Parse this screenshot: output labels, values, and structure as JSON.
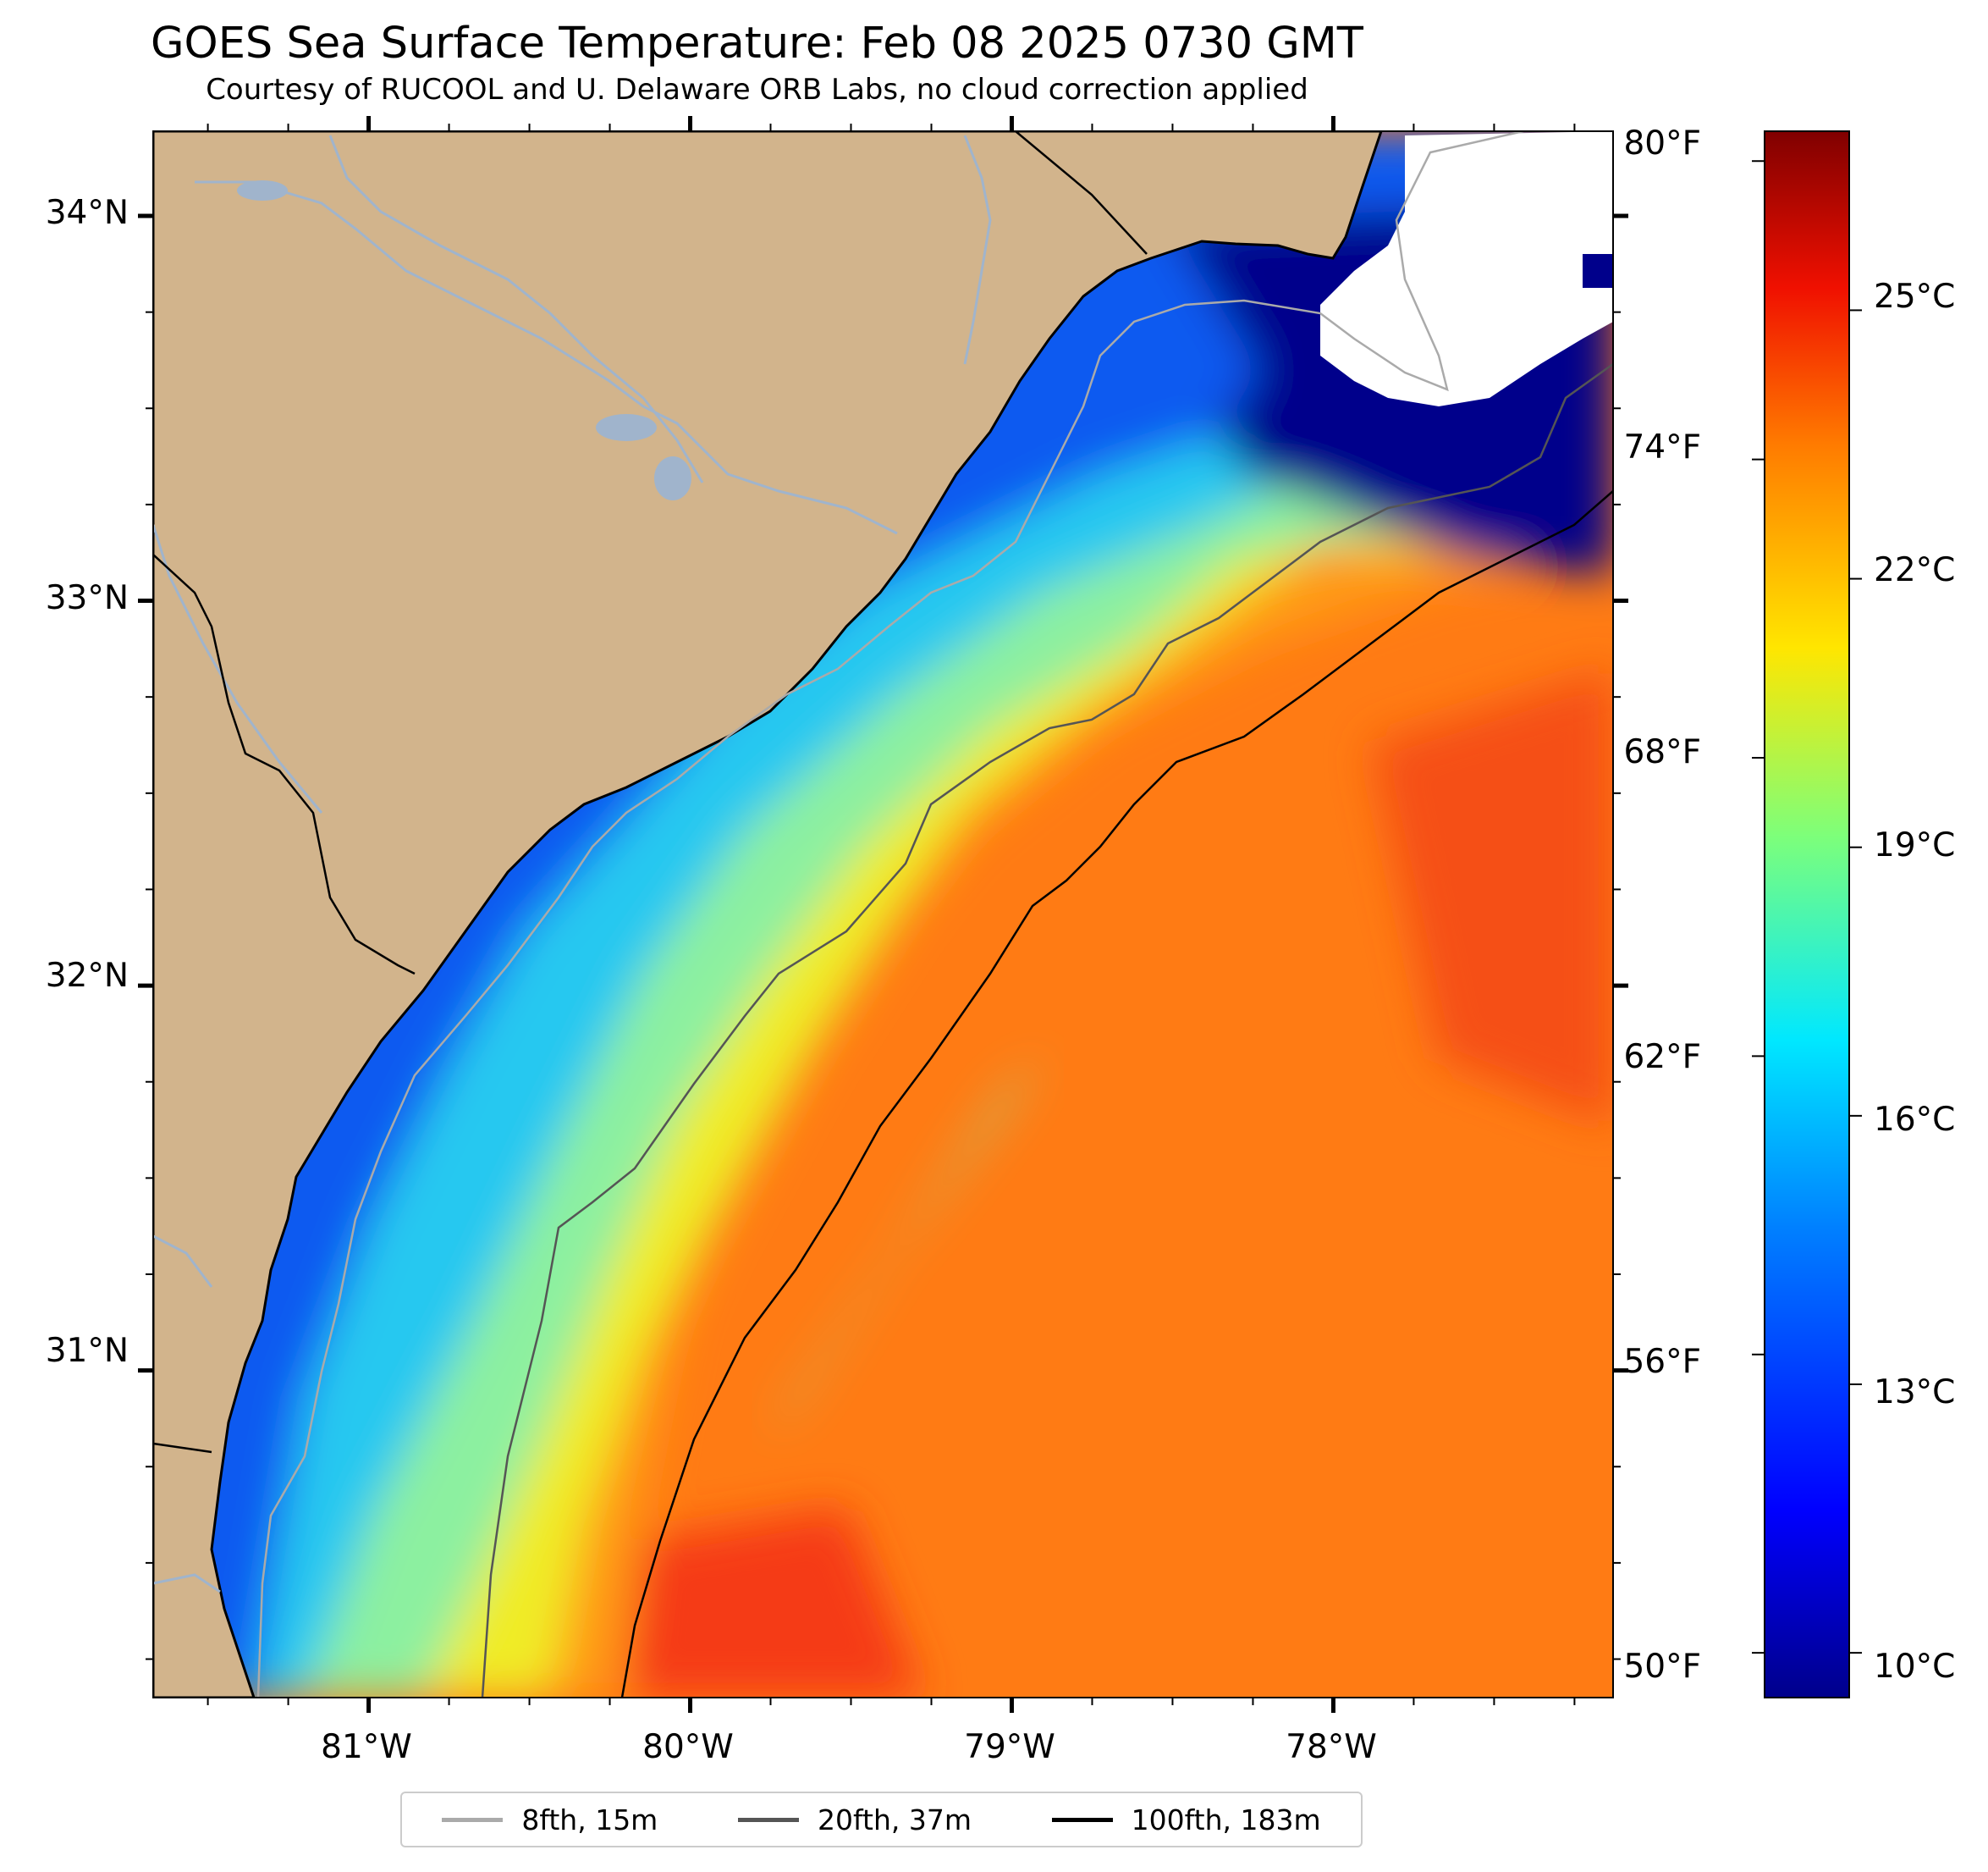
{
  "title": "GOES Sea Surface Temperature: Feb 08 2025 0730 GMT",
  "subtitle": "Courtesy of RUCOOL and U. Delaware ORB Labs, no cloud correction applied",
  "map": {
    "lat_range": [
      30.15,
      34.22
    ],
    "lon_range": [
      -81.67,
      -77.13
    ],
    "lat_ticks": [
      {
        "value": 34,
        "label": "34°N"
      },
      {
        "value": 33,
        "label": "33°N"
      },
      {
        "value": 32,
        "label": "32°N"
      },
      {
        "value": 31,
        "label": "31°N"
      }
    ],
    "lon_ticks": [
      {
        "value": -81,
        "label": "81°W"
      },
      {
        "value": -80,
        "label": "80°W"
      },
      {
        "value": -79,
        "label": "79°W"
      },
      {
        "value": -78,
        "label": "78°W"
      }
    ],
    "colors": {
      "land": "#d2b48c",
      "coast": "#000000",
      "river": "#a0b4cc",
      "no_data": "#ffffff",
      "sst_cold": "#00008b",
      "sst_blue": "#0a55f0",
      "sst_cyan": "#28c8f0",
      "sst_green": "#8cf0a0",
      "sst_yellow": "#f0f028",
      "sst_orange": "#ff8c14",
      "sst_warm": "#ff6414",
      "sst_hot": "#f53214"
    }
  },
  "colorbar": {
    "c_range": [
      9.5,
      27.0
    ],
    "celsius_ticks": [
      {
        "value": 10,
        "label": "10°C"
      },
      {
        "value": 13,
        "label": "13°C"
      },
      {
        "value": 16,
        "label": "16°C"
      },
      {
        "value": 19,
        "label": "19°C"
      },
      {
        "value": 22,
        "label": "22°C"
      },
      {
        "value": 25,
        "label": "25°C"
      }
    ],
    "fahrenheit_ticks": [
      {
        "value": 50,
        "label": "50°F"
      },
      {
        "value": 56,
        "label": "56°F"
      },
      {
        "value": 62,
        "label": "62°F"
      },
      {
        "value": 68,
        "label": "68°F"
      },
      {
        "value": 74,
        "label": "74°F"
      },
      {
        "value": 80,
        "label": "80°F"
      }
    ],
    "colormap": [
      "#00008b",
      "#0000ff",
      "#0080ff",
      "#00e8ff",
      "#7dff7a",
      "#ffe600",
      "#ff7b00",
      "#f01000",
      "#800000"
    ]
  },
  "legend": [
    {
      "label": "8fth, 15m",
      "color": "#aaaaaa"
    },
    {
      "label": "20fth, 37m",
      "color": "#555555"
    },
    {
      "label": "100fth, 183m",
      "color": "#000000"
    }
  ]
}
